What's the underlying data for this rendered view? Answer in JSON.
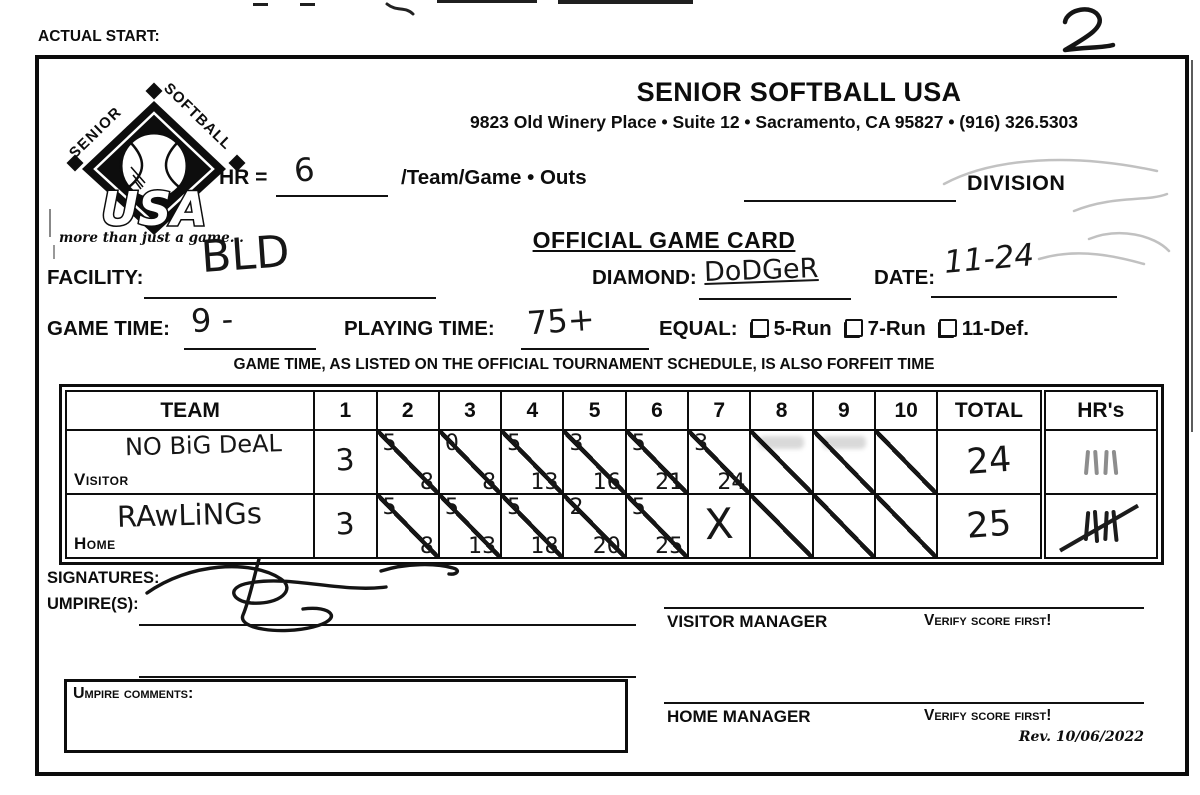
{
  "page": {
    "actual_start_label": "ACTUAL START:",
    "page_number": "2"
  },
  "header": {
    "org_name": "SENIOR SOFTBALL USA",
    "address": "9823 Old Winery Place • Suite 12 • Sacramento, CA 95827 • (916) 326.5303",
    "logo": {
      "arc_left_text": "SENIOR",
      "arc_right_text": "SOFTBALL",
      "usa_text": "USA",
      "tagline": "more than just a game..."
    },
    "hr_label": "HR =",
    "hr_value": "6",
    "hr_suffix": "/Team/Game • Outs",
    "division_label": "DIVISION"
  },
  "card": {
    "title": "OFFICIAL GAME CARD",
    "facility_label": "FACILITY:",
    "facility_value": "BLD",
    "diamond_label": "DIAMOND:",
    "diamond_value": "DoDGeR",
    "date_label": "DATE:",
    "date_value": "11-24",
    "game_time_label": "GAME TIME:",
    "game_time_value": "9 -",
    "playing_time_label": "PLAYING TIME:",
    "playing_time_value": "75+",
    "equal_label": "EQUAL:",
    "equal_options": [
      "5-Run",
      "7-Run",
      "11-Def."
    ],
    "forfeit_note": "GAME TIME, AS LISTED ON THE OFFICIAL TOURNAMENT SCHEDULE, IS ALSO FORFEIT TIME"
  },
  "score_table": {
    "headers": [
      "TEAM",
      "1",
      "2",
      "3",
      "4",
      "5",
      "6",
      "7",
      "8",
      "9",
      "10",
      "TOTAL",
      "HR's"
    ],
    "rows": [
      {
        "role_label": "Visitor",
        "team_name": "NO BiG DeAL",
        "innings": [
          {
            "text": "3"
          },
          {
            "top": "5",
            "bottom": "8",
            "slash": true
          },
          {
            "top": "0",
            "bottom": "8",
            "slash": true
          },
          {
            "top": "5",
            "bottom": "13",
            "slash": true
          },
          {
            "top": "3",
            "bottom": "16",
            "slash": true
          },
          {
            "top": "5",
            "bottom": "21",
            "slash": true
          },
          {
            "top": "3",
            "bottom": "24",
            "slash": true
          },
          {
            "slash": true,
            "smudge": true
          },
          {
            "slash": true,
            "smudge": true
          },
          {
            "slash": true
          }
        ],
        "total": "24",
        "hr_tally_count": 4,
        "hr_tally_struck": false,
        "hr_tally_faint": true
      },
      {
        "role_label": "Home",
        "team_name": "RAwLiNGs",
        "innings": [
          {
            "text": "3"
          },
          {
            "top": "5",
            "bottom": "8",
            "slash": true
          },
          {
            "top": "5",
            "bottom": "13",
            "slash": true
          },
          {
            "top": "5",
            "bottom": "18",
            "slash": true
          },
          {
            "top": "2",
            "bottom": "20",
            "slash": true
          },
          {
            "top": "5",
            "bottom": "25",
            "slash": true
          },
          {
            "text": "X",
            "big": true
          },
          {
            "slash": true
          },
          {
            "slash": true
          },
          {
            "slash": true
          }
        ],
        "total": "25",
        "hr_tally_count": 4,
        "hr_tally_struck": true,
        "hr_tally_faint": false
      }
    ]
  },
  "footer": {
    "signatures_label": "SIGNATURES:",
    "umpires_label": "UMPIRE(S):",
    "visitor_manager_label": "VISITOR MANAGER",
    "home_manager_label": "HOME MANAGER",
    "verify_label": "Verify score first!",
    "rev_label": "Rev. 10/06/2022",
    "umpire_comments_label": "Umpire comments:"
  }
}
